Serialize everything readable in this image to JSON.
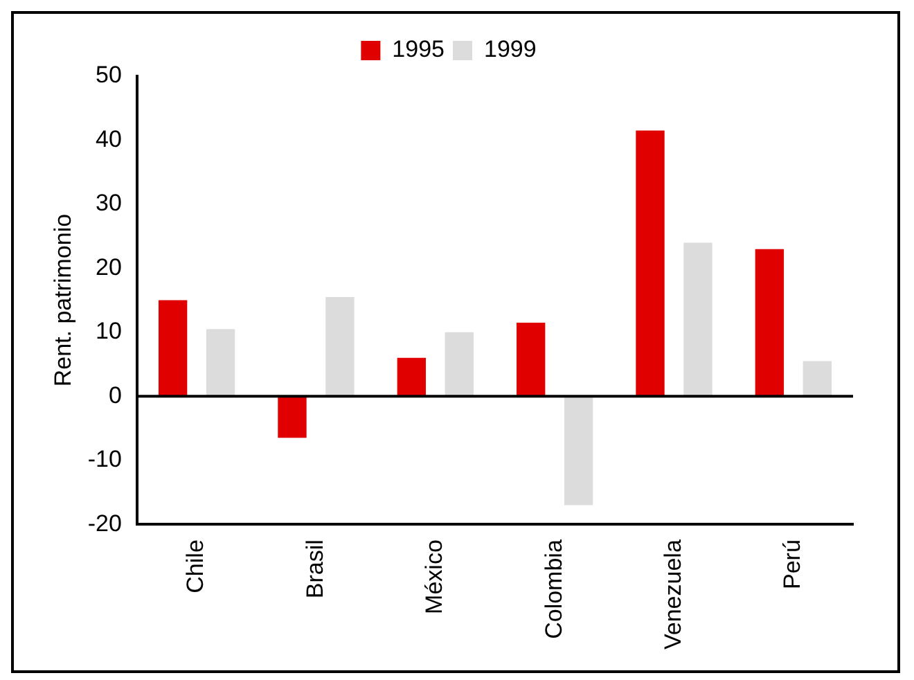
{
  "chart_data": {
    "type": "bar",
    "ylabel": "Rent. patrimonio",
    "categories": [
      "Chile",
      "Brasil",
      "México",
      "Colombia",
      "Venezuela",
      "Perú"
    ],
    "series": [
      {
        "name": "1995",
        "color": "#e00000",
        "values": [
          15,
          -6.5,
          6,
          11.5,
          41.5,
          23
        ]
      },
      {
        "name": "1999",
        "color": "#dcdcdc",
        "values": [
          10.5,
          15.5,
          10,
          -17,
          24,
          5.5
        ]
      }
    ],
    "ylim": [
      -20,
      50
    ],
    "yticks": [
      -20,
      -10,
      0,
      10,
      20,
      30,
      40,
      50
    ],
    "grid": false,
    "legend": "top",
    "ref_lines": [
      {
        "axis": "y",
        "value": 0,
        "color": "#000000"
      }
    ]
  }
}
